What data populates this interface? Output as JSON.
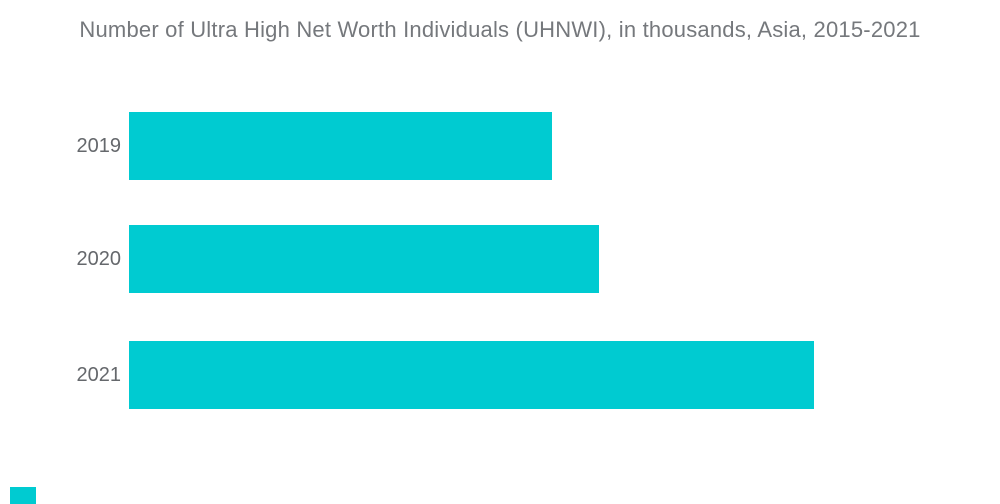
{
  "page": {
    "background": "#ffffff"
  },
  "chart_data": {
    "type": "bar",
    "orientation": "horizontal",
    "title": "Number of Ultra High Net Worth Individuals (UHNWI), in thousands, Asia, 2015-2021",
    "categories": [
      "2019",
      "2020",
      "2021"
    ],
    "values": [
      126,
      140,
      204
    ],
    "values_estimated_from_bar_lengths": true,
    "xlabel": "",
    "ylabel": "",
    "xlim": [
      0,
      250
    ],
    "grid": false,
    "legend": false,
    "data_labels": false,
    "bar_color": "#00CBD1",
    "title_color": "#75787C",
    "category_label_color": "#65686C"
  },
  "brand": {
    "mark_color": "#00CBD1"
  }
}
